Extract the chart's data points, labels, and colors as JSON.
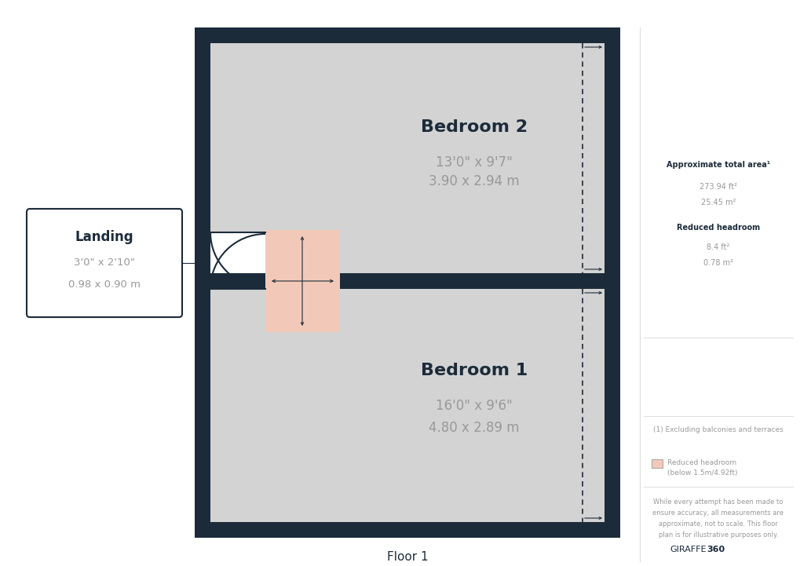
{
  "bg_color": "#ffffff",
  "wall_color": "#1c2b3a",
  "floor_color": "#d3d3d3",
  "reduced_headroom_color": "#f2c9b8",
  "title": "Floor 1",
  "room1_name": "Bedroom 2",
  "room1_dim1": "13'0\" x 9'7\"",
  "room1_dim2": "3.90 x 2.94 m",
  "room2_name": "Bedroom 1",
  "room2_dim1": "16'0\" x 9'6\"",
  "room2_dim2": "4.80 x 2.89 m",
  "landing_name": "Landing",
  "landing_dim1": "3'0\" x 2'10\"",
  "landing_dim2": "0.98 x 0.90 m",
  "approx_area_title": "Approximate total area¹",
  "approx_area_ft": "273.94 ft²",
  "approx_area_m": "25.45 m²",
  "reduced_headroom_title": "Reduced headroom",
  "reduced_headroom_ft": "8.4 ft²",
  "reduced_headroom_m": "0.78 m²",
  "footnote1": "(1) Excluding balconies and terraces",
  "footnote2_line1": "Reduced headroom",
  "footnote2_line2": "(below 1.5m/4.92ft)",
  "disclaimer": "While every attempt has been made to\nensure accuracy, all measurements are\napproximate, not to scale. This floor\nplan is for illustrative purposes only.",
  "brand1": "GIRAFFE",
  "brand2": "360",
  "text_dark": "#1c2b3a",
  "text_gray": "#999999"
}
